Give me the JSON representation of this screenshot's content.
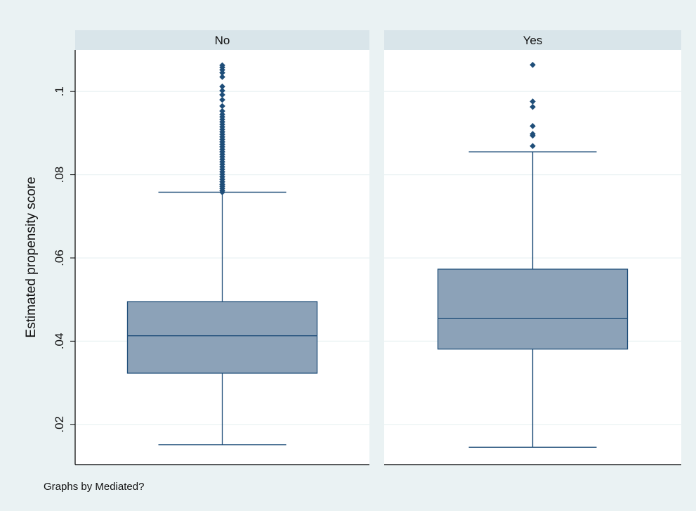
{
  "chart_data": {
    "type": "box",
    "ylabel": "Estimated propensity score",
    "yticks": [
      ".02",
      ".04",
      ".06",
      ".08",
      ".1"
    ],
    "ytick_values": [
      0.02,
      0.04,
      0.06,
      0.08,
      0.1
    ],
    "ylim": [
      0.0105,
      0.11
    ],
    "grid": true,
    "note": "Graphs by Mediated?",
    "colors": {
      "outer_background": "#eaf2f3",
      "strip": "#d9e5ea",
      "box_fill": "#8ca2b8",
      "box_line": "#1f4e79",
      "outlier": "#1f4e79",
      "gridline": "#eaf2f3"
    },
    "panels": [
      {
        "label": "No",
        "whisker_low": 0.0151,
        "q1": 0.0323,
        "median": 0.0413,
        "q3": 0.0495,
        "whisker_high": 0.0758,
        "outliers": [
          0.0758,
          0.0762,
          0.0767,
          0.0772,
          0.0777,
          0.0783,
          0.0789,
          0.0795,
          0.0801,
          0.0807,
          0.0813,
          0.0819,
          0.0825,
          0.0831,
          0.0837,
          0.0843,
          0.0849,
          0.0855,
          0.0861,
          0.0867,
          0.0873,
          0.0879,
          0.0885,
          0.0891,
          0.0897,
          0.0903,
          0.0909,
          0.0915,
          0.0921,
          0.0927,
          0.0933,
          0.0939,
          0.0945,
          0.0953,
          0.0965,
          0.098,
          0.0992,
          0.1002,
          0.1012,
          0.1035,
          0.1045,
          0.1052,
          0.1058,
          0.1063
        ]
      },
      {
        "label": "Yes",
        "whisker_low": 0.0145,
        "q1": 0.0381,
        "median": 0.0454,
        "q3": 0.0573,
        "whisker_high": 0.0855,
        "outliers": [
          0.0869,
          0.0894,
          0.0898,
          0.0917,
          0.0963,
          0.0976,
          0.1064
        ]
      }
    ]
  }
}
